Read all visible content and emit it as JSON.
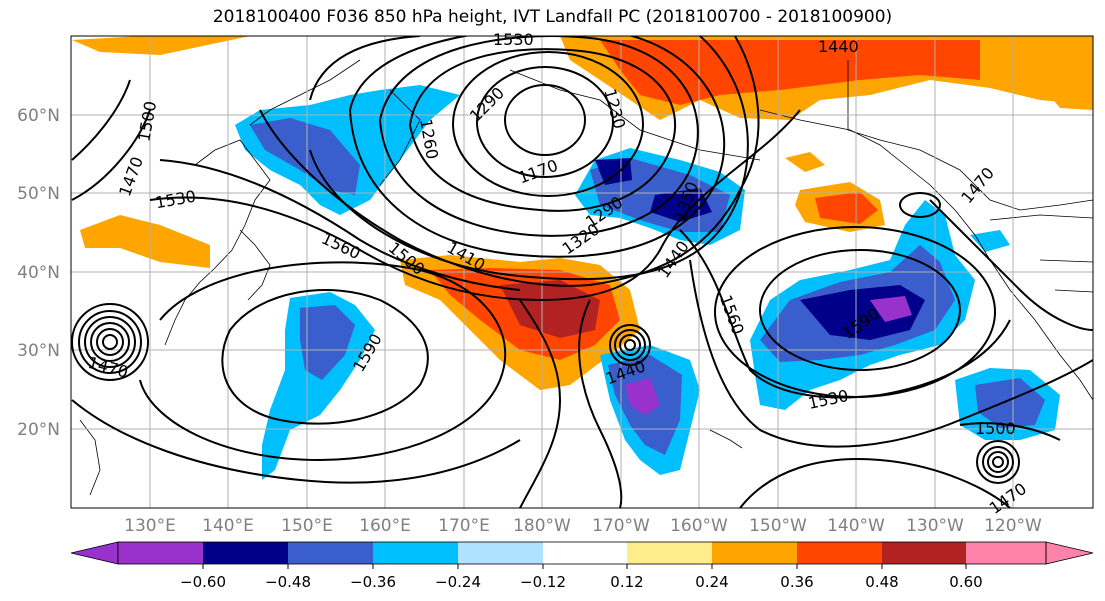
{
  "title": "2018100400 F036 850 hPa height, IVT Landfall PC (2018100700 - 2018100900)",
  "map": {
    "projection": "PlateCarree",
    "lon_range": [
      120,
      -110
    ],
    "lat_range": [
      10,
      70
    ],
    "gridlines": true,
    "coastlines": true,
    "lat_labels": [
      "20°N",
      "30°N",
      "40°N",
      "50°N",
      "60°N"
    ],
    "lon_labels": [
      "130°E",
      "140°E",
      "150°E",
      "160°E",
      "170°E",
      "180°W",
      "170°W",
      "160°W",
      "150°W",
      "140°W",
      "130°W",
      "120°W"
    ]
  },
  "height_contours": {
    "variable": "850 hPa height",
    "labels": [
      "1530",
      "1440",
      "1500",
      "1230",
      "1260",
      "1290",
      "1170",
      "1470",
      "1530",
      "1290",
      "1350",
      "1320",
      "1560",
      "1500",
      "1410",
      "1440",
      "1560",
      "1590",
      "1470",
      "1440",
      "1590",
      "1530",
      "1500",
      "1470",
      "1470"
    ]
  },
  "colorbar": {
    "tick_labels": [
      "−0.60",
      "−0.48",
      "−0.36",
      "−0.24",
      "−0.12",
      "0.12",
      "0.24",
      "0.36",
      "0.48",
      "0.60"
    ],
    "colors": [
      "#9932cc",
      "#00008b",
      "#3a5fcd",
      "#00bfff",
      "#b0e2ff",
      "#ffffff",
      "#ffec8b",
      "#ffa500",
      "#ff4500",
      "#b22222",
      "#ff82ab"
    ]
  }
}
